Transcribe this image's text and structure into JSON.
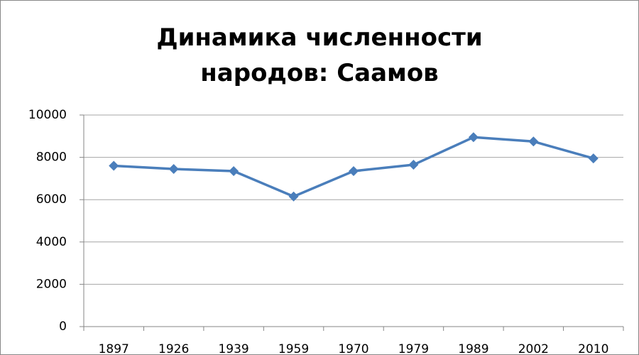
{
  "chart_data": {
    "type": "line",
    "title": "Динамика численности народов: Саамов",
    "categories": [
      "1897",
      "1926",
      "1939",
      "1959",
      "1970",
      "1979",
      "1989",
      "2002",
      "2010"
    ],
    "values": [
      7600,
      7450,
      7350,
      6150,
      7350,
      7650,
      8950,
      8750,
      7950
    ],
    "color": "#4a7ebb",
    "ylim": [
      0,
      10000
    ],
    "yticks": [
      0,
      2000,
      4000,
      6000,
      8000,
      10000
    ],
    "grid": true
  }
}
